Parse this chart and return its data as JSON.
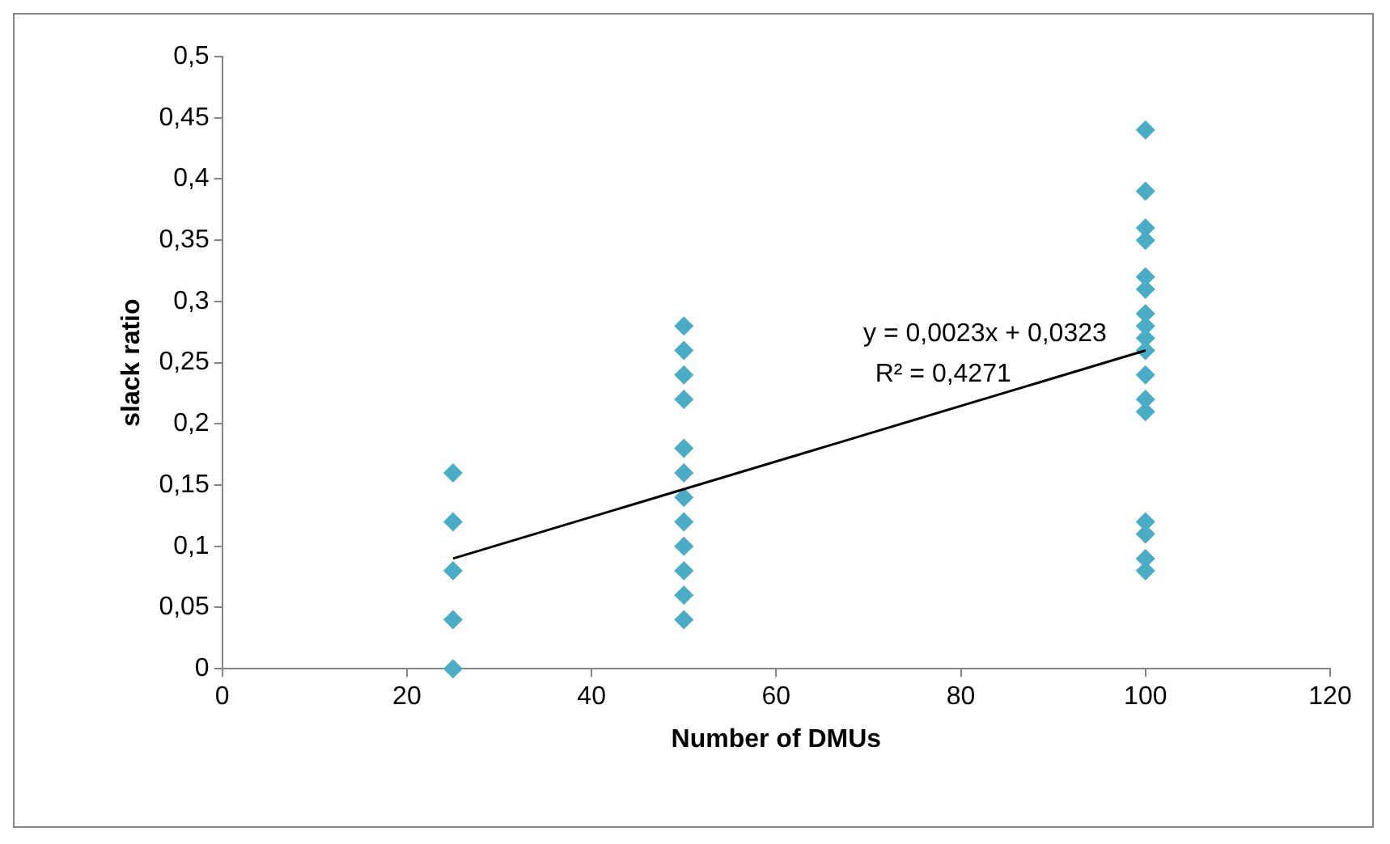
{
  "chart_data": {
    "type": "scatter",
    "xlabel": "Number of DMUs",
    "ylabel": "slack ratio",
    "xlim": [
      0,
      120
    ],
    "xticks": [
      0,
      20,
      40,
      60,
      80,
      100,
      120
    ],
    "ylim": [
      0,
      0.5
    ],
    "yticks": [
      {
        "value": 0,
        "label": "0"
      },
      {
        "value": 0.05,
        "label": "0,05"
      },
      {
        "value": 0.1,
        "label": "0,1"
      },
      {
        "value": 0.15,
        "label": "0,15"
      },
      {
        "value": 0.2,
        "label": "0,2"
      },
      {
        "value": 0.25,
        "label": "0,25"
      },
      {
        "value": 0.3,
        "label": "0,3"
      },
      {
        "value": 0.35,
        "label": "0,35"
      },
      {
        "value": 0.4,
        "label": "0,4"
      },
      {
        "value": 0.45,
        "label": "0,45"
      },
      {
        "value": 0.5,
        "label": "0,5"
      }
    ],
    "grid": false,
    "legend": false,
    "series": [
      {
        "type": "scatter",
        "marker": "diamond",
        "color": "#4bacc6",
        "x": [
          25,
          25,
          25,
          25,
          25,
          50,
          50,
          50,
          50,
          50,
          50,
          50,
          50,
          50,
          50,
          50,
          50,
          100,
          100,
          100,
          100,
          100,
          100,
          100,
          100,
          100,
          100,
          100,
          100,
          100,
          100,
          100,
          100,
          100
        ],
        "values": [
          0,
          0.04,
          0.08,
          0.12,
          0.16,
          0.04,
          0.06,
          0.08,
          0.1,
          0.12,
          0.14,
          0.16,
          0.18,
          0.22,
          0.24,
          0.26,
          0.28,
          0.44,
          0.39,
          0.36,
          0.35,
          0.32,
          0.31,
          0.29,
          0.28,
          0.27,
          0.26,
          0.24,
          0.22,
          0.21,
          0.12,
          0.11,
          0.09,
          0.08
        ]
      },
      {
        "type": "line",
        "marker": "none",
        "line_style": "solid",
        "color": "#000000",
        "x": [
          25,
          100
        ],
        "values": [
          0.09,
          0.26
        ]
      }
    ],
    "annotations": [
      "y = 0,0023x + 0,0323",
      "R² = 0,4271"
    ]
  }
}
